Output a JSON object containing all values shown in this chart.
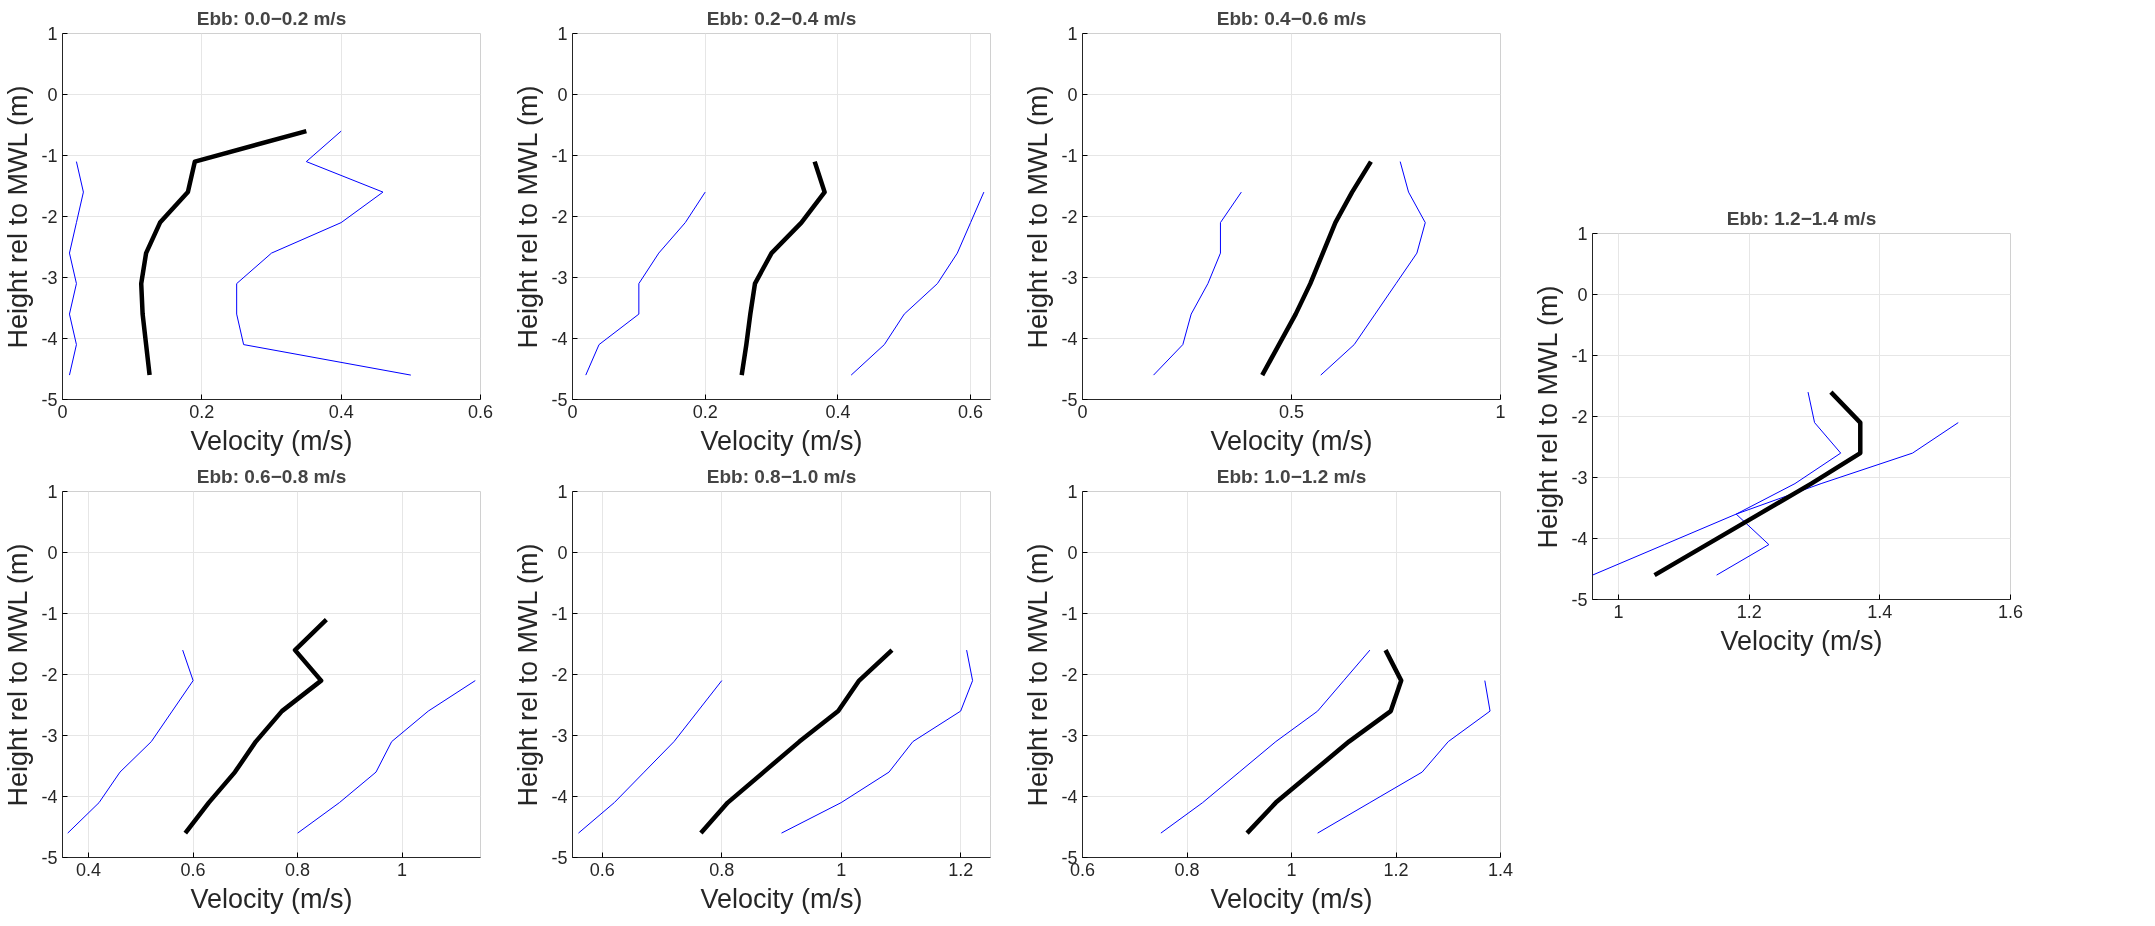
{
  "chart_data": [
    {
      "type": "line",
      "title": "Ebb: 0.0−0.2 m/s",
      "xlabel": "Velocity (m/s)",
      "ylabel": "Height rel to MWL (m)",
      "xlim": [
        0,
        0.6
      ],
      "xticks": [
        0,
        0.2,
        0.4,
        0.6
      ],
      "ylim": [
        -5,
        1
      ],
      "yticks": [
        -5,
        -4,
        -3,
        -2,
        -1,
        0,
        1
      ],
      "grid": true,
      "series": [
        {
          "color": "#000000",
          "x": [
            0.125,
            0.12,
            0.115,
            0.113,
            0.12,
            0.14,
            0.18,
            0.19,
            0.35
          ],
          "values": [
            -4.6,
            -4.1,
            -3.6,
            -3.1,
            -2.6,
            -2.1,
            -1.6,
            -1.1,
            -0.6
          ]
        },
        {
          "color": "#0000ff",
          "x": [
            0.01,
            0.02,
            0.01,
            0.02,
            0.01,
            0.02,
            0.03,
            0.02
          ],
          "values": [
            -4.6,
            -4.1,
            -3.6,
            -3.1,
            -2.6,
            -2.1,
            -1.6,
            -1.1
          ]
        },
        {
          "color": "#0000ff",
          "x": [
            0.5,
            0.26,
            0.25,
            0.25,
            0.3,
            0.4,
            0.46,
            0.35,
            0.4
          ],
          "values": [
            -4.6,
            -4.1,
            -3.6,
            -3.1,
            -2.6,
            -2.1,
            -1.6,
            -1.1,
            -0.6
          ]
        }
      ]
    },
    {
      "type": "line",
      "title": "Ebb: 0.2−0.4 m/s",
      "xlabel": "Velocity (m/s)",
      "ylabel": "Height rel to MWL (m)",
      "xlim": [
        0,
        0.63
      ],
      "xticks": [
        0,
        0.2,
        0.4,
        0.6
      ],
      "ylim": [
        -5,
        1
      ],
      "yticks": [
        -5,
        -4,
        -3,
        -2,
        -1,
        0,
        1
      ],
      "grid": true,
      "series": [
        {
          "color": "#000000",
          "x": [
            0.255,
            0.262,
            0.268,
            0.275,
            0.3,
            0.345,
            0.38,
            0.365
          ],
          "values": [
            -4.6,
            -4.1,
            -3.6,
            -3.1,
            -2.6,
            -2.1,
            -1.6,
            -1.1
          ]
        },
        {
          "color": "#0000ff",
          "x": [
            0.02,
            0.04,
            0.1,
            0.1,
            0.13,
            0.17,
            0.2
          ],
          "values": [
            -4.6,
            -4.1,
            -3.6,
            -3.1,
            -2.6,
            -2.1,
            -1.6
          ]
        },
        {
          "color": "#0000ff",
          "x": [
            0.42,
            0.47,
            0.5,
            0.55,
            0.58,
            0.6,
            0.62
          ],
          "values": [
            -4.6,
            -4.1,
            -3.6,
            -3.1,
            -2.6,
            -2.1,
            -1.6
          ]
        }
      ]
    },
    {
      "type": "line",
      "title": "Ebb: 0.4−0.6 m/s",
      "xlabel": "Velocity (m/s)",
      "ylabel": "Height rel to MWL (m)",
      "xlim": [
        0,
        1
      ],
      "xticks": [
        0,
        0.5,
        1
      ],
      "ylim": [
        -5,
        1
      ],
      "yticks": [
        -5,
        -4,
        -3,
        -2,
        -1,
        0,
        1
      ],
      "grid": true,
      "series": [
        {
          "color": "#000000",
          "x": [
            0.43,
            0.47,
            0.51,
            0.545,
            0.575,
            0.605,
            0.645,
            0.69
          ],
          "values": [
            -4.6,
            -4.1,
            -3.6,
            -3.1,
            -2.6,
            -2.1,
            -1.6,
            -1.1
          ]
        },
        {
          "color": "#0000ff",
          "x": [
            0.17,
            0.24,
            0.26,
            0.3,
            0.33,
            0.33,
            0.38
          ],
          "values": [
            -4.6,
            -4.1,
            -3.6,
            -3.1,
            -2.6,
            -2.1,
            -1.6
          ]
        },
        {
          "color": "#0000ff",
          "x": [
            0.57,
            0.65,
            0.7,
            0.75,
            0.8,
            0.82,
            0.78,
            0.76
          ],
          "values": [
            -4.6,
            -4.1,
            -3.6,
            -3.1,
            -2.6,
            -2.1,
            -1.6,
            -1.1
          ]
        }
      ]
    },
    {
      "type": "line",
      "title": "Ebb: 0.6−0.8 m/s",
      "xlabel": "Velocity (m/s)",
      "ylabel": "Height rel to MWL (m)",
      "xlim": [
        0.35,
        1.15
      ],
      "xticks": [
        0.4,
        0.6,
        0.8,
        1
      ],
      "ylim": [
        -5,
        1
      ],
      "yticks": [
        -5,
        -4,
        -3,
        -2,
        -1,
        0,
        1
      ],
      "grid": true,
      "series": [
        {
          "color": "#000000",
          "x": [
            0.585,
            0.63,
            0.68,
            0.72,
            0.77,
            0.845,
            0.795,
            0.855
          ],
          "values": [
            -4.6,
            -4.1,
            -3.6,
            -3.1,
            -2.6,
            -2.1,
            -1.6,
            -1.1
          ]
        },
        {
          "color": "#0000ff",
          "x": [
            0.36,
            0.42,
            0.46,
            0.52,
            0.56,
            0.6,
            0.58
          ],
          "values": [
            -4.6,
            -4.1,
            -3.6,
            -3.1,
            -2.6,
            -2.1,
            -1.6
          ]
        },
        {
          "color": "#0000ff",
          "x": [
            0.8,
            0.88,
            0.95,
            0.98,
            1.05,
            1.14
          ],
          "values": [
            -4.6,
            -4.1,
            -3.6,
            -3.1,
            -2.6,
            -2.1
          ]
        }
      ]
    },
    {
      "type": "line",
      "title": "Ebb: 0.8−1.0 m/s",
      "xlabel": "Velocity (m/s)",
      "ylabel": "Height rel to MWL (m)",
      "xlim": [
        0.55,
        1.25
      ],
      "xticks": [
        0.6,
        0.8,
        1,
        1.2
      ],
      "ylim": [
        -5,
        1
      ],
      "yticks": [
        -5,
        -4,
        -3,
        -2,
        -1,
        0,
        1
      ],
      "grid": true,
      "series": [
        {
          "color": "#000000",
          "x": [
            0.765,
            0.81,
            0.87,
            0.93,
            0.995,
            1.03,
            1.085
          ],
          "values": [
            -4.6,
            -4.1,
            -3.6,
            -3.1,
            -2.6,
            -2.1,
            -1.6
          ]
        },
        {
          "color": "#0000ff",
          "x": [
            0.56,
            0.62,
            0.67,
            0.72,
            0.76,
            0.8
          ],
          "values": [
            -4.6,
            -4.1,
            -3.6,
            -3.1,
            -2.6,
            -2.1
          ]
        },
        {
          "color": "#0000ff",
          "x": [
            0.9,
            1.0,
            1.08,
            1.12,
            1.2,
            1.22,
            1.21
          ],
          "values": [
            -4.6,
            -4.1,
            -3.6,
            -3.1,
            -2.6,
            -2.1,
            -1.6
          ]
        }
      ]
    },
    {
      "type": "line",
      "title": "Ebb: 1.0−1.2 m/s",
      "xlabel": "Velocity (m/s)",
      "ylabel": "Height rel to MWL (m)",
      "xlim": [
        0.6,
        1.4
      ],
      "xticks": [
        0.6,
        0.8,
        1,
        1.2,
        1.4
      ],
      "ylim": [
        -5,
        1
      ],
      "yticks": [
        -5,
        -4,
        -3,
        -2,
        -1,
        0,
        1
      ],
      "grid": true,
      "series": [
        {
          "color": "#000000",
          "x": [
            0.915,
            0.97,
            1.04,
            1.11,
            1.19,
            1.21,
            1.18
          ],
          "values": [
            -4.6,
            -4.1,
            -3.6,
            -3.1,
            -2.6,
            -2.1,
            -1.6
          ]
        },
        {
          "color": "#0000ff",
          "x": [
            0.75,
            0.83,
            0.9,
            0.97,
            1.05,
            1.1,
            1.15
          ],
          "values": [
            -4.6,
            -4.1,
            -3.6,
            -3.1,
            -2.6,
            -2.1,
            -1.6
          ]
        },
        {
          "color": "#0000ff",
          "x": [
            1.05,
            1.15,
            1.25,
            1.3,
            1.38,
            1.37
          ],
          "values": [
            -4.6,
            -4.1,
            -3.6,
            -3.1,
            -2.6,
            -2.1
          ]
        }
      ]
    },
    {
      "type": "line",
      "title": "Ebb: 1.2−1.4 m/s",
      "xlabel": "Velocity (m/s)",
      "ylabel": "Height rel to MWL (m)",
      "xlim": [
        0.96,
        1.6
      ],
      "xticks": [
        1,
        1.2,
        1.4,
        1.6
      ],
      "ylim": [
        -5,
        1
      ],
      "yticks": [
        -5,
        -4,
        -3,
        -2,
        -1,
        0,
        1
      ],
      "grid": true,
      "series": [
        {
          "color": "#000000",
          "x": [
            1.055,
            1.135,
            1.215,
            1.295,
            1.37,
            1.37,
            1.325
          ],
          "values": [
            -4.6,
            -4.1,
            -3.6,
            -3.1,
            -2.6,
            -2.1,
            -1.6
          ]
        },
        {
          "color": "#0000ff",
          "x": [
            0.96,
            1.07,
            1.18,
            1.31,
            1.45,
            1.52
          ],
          "values": [
            -4.6,
            -4.1,
            -3.6,
            -3.1,
            -2.6,
            -2.1
          ]
        },
        {
          "color": "#0000ff",
          "x": [
            1.15,
            1.23,
            1.18,
            1.27,
            1.34,
            1.3,
            1.29
          ],
          "values": [
            -4.6,
            -4.1,
            -3.6,
            -3.1,
            -2.6,
            -2.1,
            -1.6
          ]
        }
      ]
    }
  ]
}
